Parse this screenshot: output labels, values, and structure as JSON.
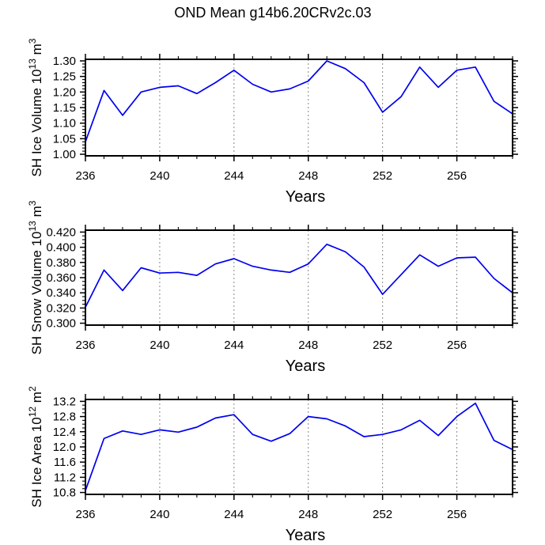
{
  "page_title": "OND Mean g14b6.20CRv2c.03",
  "colors": {
    "line": "#0000f0",
    "grid": "#888888",
    "axis": "#000000",
    "background": "#ffffff"
  },
  "chart_data": [
    {
      "type": "line",
      "title": "OND Mean g14b6.20CRv2c.03",
      "ylabel": "SH Ice Volume 10^13 m^3",
      "ylabel_parts": [
        {
          "t": "SH Ice Volume 10"
        },
        {
          "t": "13",
          "sup": true
        },
        {
          "t": " m"
        },
        {
          "t": "3",
          "sup": true
        }
      ],
      "xlabel": "Years",
      "x": [
        236,
        237,
        238,
        239,
        240,
        241,
        242,
        243,
        244,
        245,
        246,
        247,
        248,
        249,
        250,
        251,
        252,
        253,
        254,
        255,
        256,
        257,
        258,
        259
      ],
      "values": [
        1.04,
        1.205,
        1.125,
        1.2,
        1.215,
        1.22,
        1.195,
        1.23,
        1.27,
        1.225,
        1.2,
        1.21,
        1.235,
        1.3,
        1.275,
        1.23,
        1.135,
        1.185,
        1.28,
        1.215,
        1.27,
        1.28,
        1.17,
        1.13
      ],
      "xlim": [
        236,
        259
      ],
      "ylim": [
        0.995,
        1.305
      ],
      "yticks": [
        1.0,
        1.05,
        1.1,
        1.15,
        1.2,
        1.25,
        1.3
      ],
      "ytick_labels": [
        "1.00",
        "1.05",
        "1.10",
        "1.15",
        "1.20",
        "1.25",
        "1.30"
      ],
      "y_minor_step": 0.01,
      "xticks_major": [
        236,
        240,
        244,
        248,
        252,
        256
      ],
      "xtick_labels": [
        "236",
        "240",
        "244",
        "248",
        "252",
        "256"
      ],
      "x_minor_step": 1,
      "grid_x": [
        240,
        244,
        248,
        252,
        256
      ],
      "grid": "dashed-vertical",
      "legend": "none"
    },
    {
      "type": "line",
      "title": "",
      "ylabel": "SH Snow Volume 10^13 m^3",
      "ylabel_parts": [
        {
          "t": "SH Snow Volume 10"
        },
        {
          "t": "13",
          "sup": true
        },
        {
          "t": " m"
        },
        {
          "t": "3",
          "sup": true
        }
      ],
      "xlabel": "Years",
      "x": [
        236,
        237,
        238,
        239,
        240,
        241,
        242,
        243,
        244,
        245,
        246,
        247,
        248,
        249,
        250,
        251,
        252,
        253,
        254,
        255,
        256,
        257,
        258,
        259
      ],
      "values": [
        0.321,
        0.37,
        0.343,
        0.373,
        0.366,
        0.367,
        0.363,
        0.378,
        0.385,
        0.375,
        0.37,
        0.367,
        0.378,
        0.404,
        0.394,
        0.374,
        0.338,
        0.364,
        0.39,
        0.375,
        0.386,
        0.387,
        0.359,
        0.34
      ],
      "xlim": [
        236,
        259
      ],
      "ylim": [
        0.2975,
        0.4225
      ],
      "yticks": [
        0.3,
        0.32,
        0.34,
        0.36,
        0.38,
        0.4,
        0.42
      ],
      "ytick_labels": [
        "0.300",
        "0.320",
        "0.340",
        "0.360",
        "0.380",
        "0.400",
        "0.420"
      ],
      "y_minor_step": 0.005,
      "xticks_major": [
        236,
        240,
        244,
        248,
        252,
        256
      ],
      "xtick_labels": [
        "236",
        "240",
        "244",
        "248",
        "252",
        "256"
      ],
      "x_minor_step": 1,
      "grid_x": [
        240,
        244,
        248,
        252,
        256
      ],
      "grid": "dashed-vertical",
      "legend": "none"
    },
    {
      "type": "line",
      "title": "",
      "ylabel": "SH Ice Area 10^12 m^2",
      "ylabel_parts": [
        {
          "t": "SH Ice Area 10"
        },
        {
          "t": "12",
          "sup": true
        },
        {
          "t": " m"
        },
        {
          "t": "2",
          "sup": true
        }
      ],
      "xlabel": "Years",
      "x": [
        236,
        237,
        238,
        239,
        240,
        241,
        242,
        243,
        244,
        245,
        246,
        247,
        248,
        249,
        250,
        251,
        252,
        253,
        254,
        255,
        256,
        257,
        258,
        259
      ],
      "values": [
        10.85,
        12.22,
        12.42,
        12.33,
        12.45,
        12.39,
        12.52,
        12.76,
        12.85,
        12.33,
        12.15,
        12.35,
        12.8,
        12.74,
        12.55,
        12.27,
        12.33,
        12.45,
        12.7,
        12.3,
        12.8,
        13.15,
        12.17,
        11.93
      ],
      "xlim": [
        236,
        259
      ],
      "ylim": [
        10.75,
        13.25
      ],
      "yticks": [
        10.8,
        11.2,
        11.6,
        12.0,
        12.4,
        12.8,
        13.2
      ],
      "ytick_labels": [
        "10.8",
        "11.2",
        "11.6",
        "12.0",
        "12.4",
        "12.8",
        "13.2"
      ],
      "y_minor_step": 0.1,
      "xticks_major": [
        236,
        240,
        244,
        248,
        252,
        256
      ],
      "xtick_labels": [
        "236",
        "240",
        "244",
        "248",
        "252",
        "256"
      ],
      "x_minor_step": 1,
      "grid_x": [
        240,
        244,
        248,
        252,
        256
      ],
      "grid": "dashed-vertical",
      "legend": "none"
    }
  ]
}
